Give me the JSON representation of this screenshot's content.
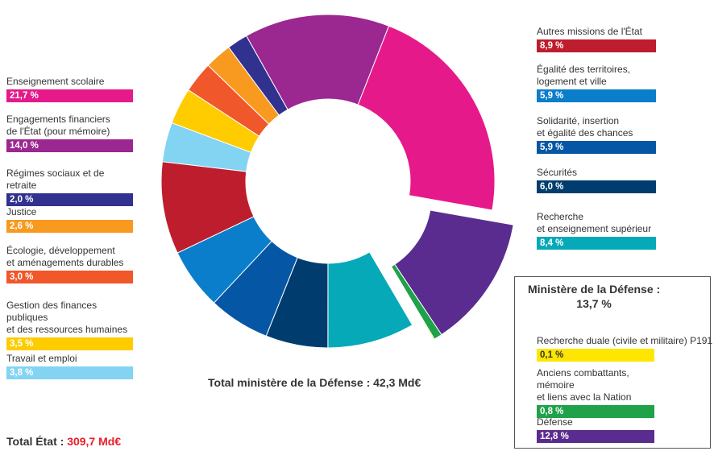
{
  "chart_data": {
    "type": "pie",
    "variant": "donut",
    "slices": [
      {
        "name": "Défense",
        "value": 12.8,
        "color": "#5b2c8f",
        "exploded": true
      },
      {
        "name": "Anciens combattants, mémoire et liens avec la Nation",
        "value": 0.8,
        "color": "#1fa24a",
        "exploded": true
      },
      {
        "name": "Recherche duale (civile et militaire) P191",
        "value": 0.1,
        "color": "#ffe600",
        "exploded": true
      },
      {
        "name": "Recherche et enseignement supérieur",
        "value": 8.4,
        "color": "#05a9b8"
      },
      {
        "name": "Sécurités",
        "value": 6.0,
        "color": "#003d6e"
      },
      {
        "name": "Solidarité, insertion et égalité des chances",
        "value": 5.9,
        "color": "#0557a6"
      },
      {
        "name": "Égalité des territoires, logement et ville",
        "value": 5.9,
        "color": "#0a7ecb"
      },
      {
        "name": "Autres missions de l'État",
        "value": 8.9,
        "color": "#be1d2d"
      },
      {
        "name": "Travail et emploi",
        "value": 3.8,
        "color": "#83d3f3"
      },
      {
        "name": "Gestion des finances publiques et des ressources humaines",
        "value": 3.5,
        "color": "#ffcc00"
      },
      {
        "name": "Écologie, développement et aménagements durables",
        "value": 3.0,
        "color": "#f0572a"
      },
      {
        "name": "Justice",
        "value": 2.6,
        "color": "#f79a1f"
      },
      {
        "name": "Régimes sociaux et de retraite",
        "value": 2.0,
        "color": "#31318f"
      },
      {
        "name": "Engagements financiers de l'État (pour mémoire)",
        "value": 14.0,
        "color": "#9b2791"
      },
      {
        "name": "Enseignement scolaire",
        "value": 21.7,
        "color": "#e5198a"
      }
    ],
    "total_defense": "Total ministère de la Défense : 42,3 Md€",
    "total_etat_label": "Total État : ",
    "total_etat_value": "309,7 Md€"
  },
  "labels": {
    "enseignement_scolaire": {
      "name": "Enseignement scolaire",
      "pct": "21,7 %",
      "color": "#e5198a"
    },
    "engagements": {
      "name": "Engagements financiers\nde l'État (pour mémoire)",
      "pct": "14,0 %",
      "color": "#9b2791"
    },
    "regimes": {
      "name": "Régimes sociaux et de retraite",
      "pct": "2,0 %",
      "color": "#31318f"
    },
    "justice": {
      "name": "Justice",
      "pct": "2,6 %",
      "color": "#f79a1f"
    },
    "ecologie": {
      "name": "Écologie, développement\net aménagements durables",
      "pct": "3,0 %",
      "color": "#f0572a"
    },
    "gestion": {
      "name": "Gestion des finances publiques\net des ressources humaines",
      "pct": "3,5 %",
      "color": "#ffcc00"
    },
    "travail": {
      "name": "Travail et emploi",
      "pct": "3,8 %",
      "color": "#83d3f3"
    },
    "autres": {
      "name": "Autres missions de l'État",
      "pct": "8,9 %",
      "color": "#be1d2d"
    },
    "egalite": {
      "name": "Égalité des territoires,\nlogement et ville",
      "pct": "5,9 %",
      "color": "#0a7ecb"
    },
    "solidarite": {
      "name": "Solidarité, insertion\net égalité des chances",
      "pct": "5,9 %",
      "color": "#0557a6"
    },
    "securites": {
      "name": "Sécurités",
      "pct": "6,0 %",
      "color": "#003d6e"
    },
    "recherche": {
      "name": "Recherche\net enseignement supérieur",
      "pct": "8,4 %",
      "color": "#05a9b8"
    },
    "recherche_duale": {
      "name": "Recherche duale (civile et militaire) P191",
      "pct": "0,1 %",
      "color": "#ffe600"
    },
    "anciens": {
      "name": "Anciens combattants, mémoire\net liens avec la Nation",
      "pct": "0,8 %",
      "color": "#1fa24a"
    },
    "defense": {
      "name": "Défense",
      "pct": "12,8 %",
      "color": "#5b2c8f"
    }
  },
  "defense_box": {
    "title": "Ministère de la Défense :\n13,7 %"
  }
}
